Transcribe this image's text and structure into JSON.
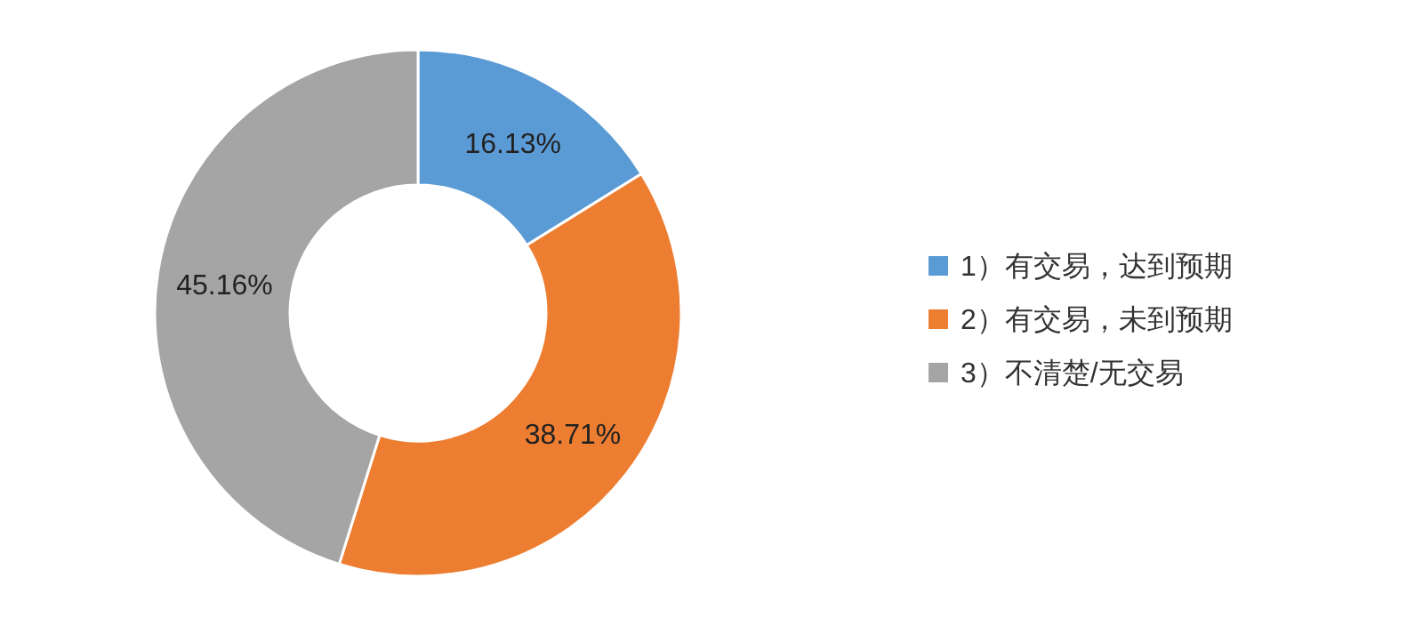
{
  "chart_data": {
    "type": "donut",
    "categories": [
      "1）有交易，达到预期",
      "2）有交易，未到预期",
      "3）不清楚/无交易"
    ],
    "values": [
      16.13,
      38.71,
      45.16
    ],
    "colors": [
      "#5b9bd5",
      "#ed7d31",
      "#a5a5a5"
    ],
    "value_labels": [
      "16.13%",
      "38.71%",
      "45.16%"
    ],
    "legend": "right"
  }
}
